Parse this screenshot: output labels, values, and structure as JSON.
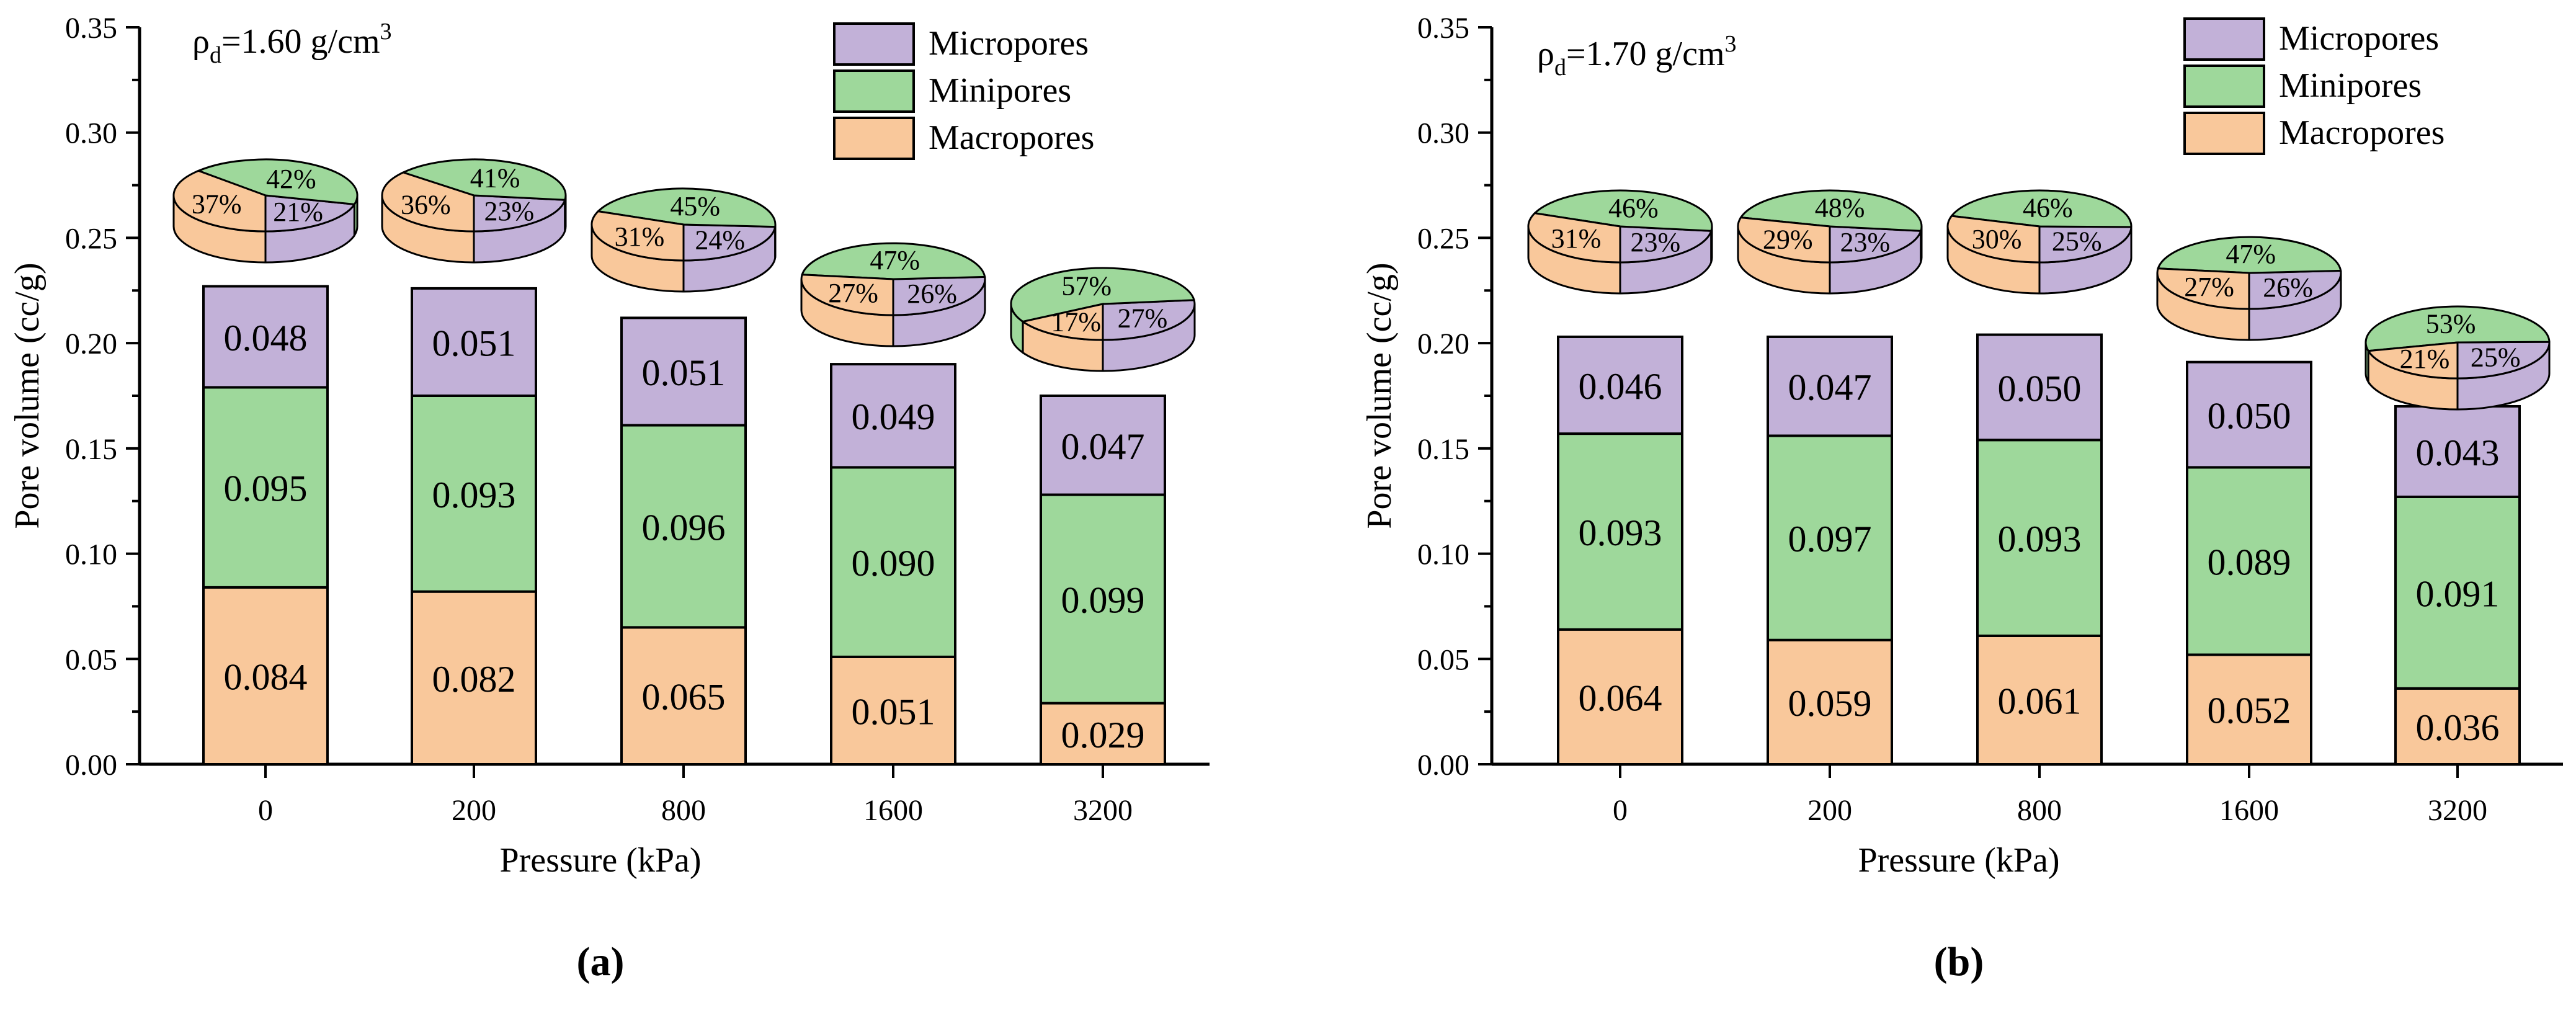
{
  "chart_data": [
    {
      "type": "bar",
      "panel_label": "(a)",
      "annotation": "ρd=1.60 g/cm3",
      "xlabel": "Pressure (kPa)",
      "ylabel": "Pore volume (cc/g)",
      "ylim": [
        0,
        0.35
      ],
      "y_ticks": [
        "0.00",
        "0.05",
        "0.10",
        "0.15",
        "0.20",
        "0.25",
        "0.30",
        "0.35"
      ],
      "categories": [
        "0",
        "200",
        "800",
        "1600",
        "3200"
      ],
      "series": [
        {
          "name": "Macropores",
          "values": [
            0.084,
            0.082,
            0.065,
            0.051,
            0.029
          ],
          "labels": [
            "0.084",
            "0.082",
            "0.065",
            "0.051",
            "0.029"
          ]
        },
        {
          "name": "Minipores",
          "values": [
            0.095,
            0.093,
            0.096,
            0.09,
            0.099
          ],
          "labels": [
            "0.095",
            "0.093",
            "0.096",
            "0.090",
            "0.099"
          ]
        },
        {
          "name": "Micropores",
          "values": [
            0.048,
            0.051,
            0.051,
            0.049,
            0.047
          ],
          "labels": [
            "0.048",
            "0.051",
            "0.051",
            "0.049",
            "0.047"
          ]
        }
      ],
      "pies": [
        {
          "macro": 37,
          "mini": 42,
          "micro": 21,
          "labels": {
            "macro": "37%",
            "mini": "42%",
            "micro": "21%"
          }
        },
        {
          "macro": 36,
          "mini": 41,
          "micro": 23,
          "labels": {
            "macro": "36%",
            "mini": "41%",
            "micro": "23%"
          }
        },
        {
          "macro": 31,
          "mini": 45,
          "micro": 24,
          "labels": {
            "macro": "31%",
            "mini": "45%",
            "micro": "24%"
          }
        },
        {
          "macro": 27,
          "mini": 47,
          "micro": 26,
          "labels": {
            "macro": "27%",
            "mini": "47%",
            "micro": "26%"
          }
        },
        {
          "macro": 17,
          "mini": 57,
          "micro": 27,
          "labels": {
            "macro": "17%",
            "mini": "57%",
            "micro": "27%"
          }
        }
      ],
      "legend_placement": "top-right"
    },
    {
      "type": "bar",
      "panel_label": "(b)",
      "annotation": "ρd=1.70 g/cm3",
      "xlabel": "Pressure (kPa)",
      "ylabel": "Pore volume (cc/g)",
      "ylim": [
        0,
        0.35
      ],
      "y_ticks": [
        "0.00",
        "0.05",
        "0.10",
        "0.15",
        "0.20",
        "0.25",
        "0.30",
        "0.35"
      ],
      "categories": [
        "0",
        "200",
        "800",
        "1600",
        "3200"
      ],
      "series": [
        {
          "name": "Macropores",
          "values": [
            0.064,
            0.059,
            0.061,
            0.052,
            0.036
          ],
          "labels": [
            "0.064",
            "0.059",
            "0.061",
            "0.052",
            "0.036"
          ]
        },
        {
          "name": "Minipores",
          "values": [
            0.093,
            0.097,
            0.093,
            0.089,
            0.091
          ],
          "labels": [
            "0.093",
            "0.097",
            "0.093",
            "0.089",
            "0.091"
          ]
        },
        {
          "name": "Micropores",
          "values": [
            0.046,
            0.047,
            0.05,
            0.05,
            0.043
          ],
          "labels": [
            "0.046",
            "0.047",
            "0.050",
            "0.050",
            "0.043"
          ]
        }
      ],
      "pies": [
        {
          "macro": 31,
          "mini": 46,
          "micro": 23,
          "labels": {
            "macro": "31%",
            "mini": "46%",
            "micro": "23%"
          }
        },
        {
          "macro": 29,
          "mini": 48,
          "micro": 23,
          "labels": {
            "macro": "29%",
            "mini": "48%",
            "micro": "23%"
          }
        },
        {
          "macro": 30,
          "mini": 46,
          "micro": 25,
          "labels": {
            "macro": "30%",
            "mini": "46%",
            "micro": "25%"
          }
        },
        {
          "macro": 27,
          "mini": 47,
          "micro": 26,
          "labels": {
            "macro": "27%",
            "mini": "47%",
            "micro": "26%"
          }
        },
        {
          "macro": 21,
          "mini": 53,
          "micro": 25,
          "labels": {
            "macro": "21%",
            "mini": "53%",
            "micro": "25%"
          }
        }
      ],
      "legend_placement": "top-right"
    }
  ],
  "colors": {
    "Macropores": "#f9c89b",
    "Minipores": "#9ed89b",
    "Micropores": "#c2b1d8",
    "axis": "#000000"
  }
}
